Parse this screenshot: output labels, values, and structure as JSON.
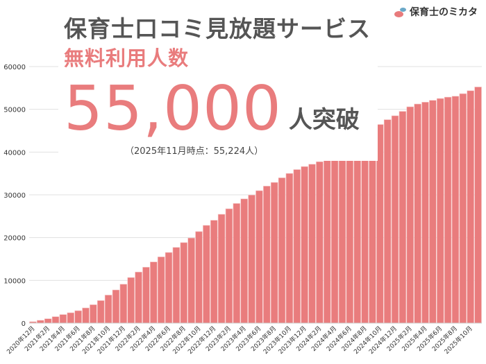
{
  "logo": {
    "text": "保育士のミカタ"
  },
  "header": {
    "title": "保育士口コミ見放題サービス",
    "subtitle": "無料利用人数",
    "big_number": "55,000",
    "suffix": "人突破",
    "note": "（2025年11月時点：55,224人）"
  },
  "colors": {
    "bar": "#e97c7d",
    "bar_edge": "#f6c4c4",
    "grid": "#e0e0e0",
    "text": "#555555"
  },
  "chart_data": {
    "type": "bar",
    "title": "保育士口コミ見放題サービス 無料利用人数",
    "xlabel": "",
    "ylabel": "",
    "ylim": [
      0,
      60000
    ],
    "yticks": [
      0,
      10000,
      20000,
      30000,
      40000,
      50000,
      60000
    ],
    "grid": true,
    "categories": [
      "2020年12月",
      "2021年1月",
      "2021年2月",
      "2021年3月",
      "2021年4月",
      "2021年5月",
      "2021年6月",
      "2021年7月",
      "2021年8月",
      "2021年9月",
      "2021年10月",
      "2021年11月",
      "2021年12月",
      "2022年1月",
      "2022年2月",
      "2022年3月",
      "2022年4月",
      "2022年5月",
      "2022年6月",
      "2022年7月",
      "2022年8月",
      "2022年9月",
      "2022年10月",
      "2022年11月",
      "2022年12月",
      "2023年1月",
      "2023年2月",
      "2023年3月",
      "2023年4月",
      "2023年5月",
      "2023年6月",
      "2023年7月",
      "2023年8月",
      "2023年9月",
      "2023年10月",
      "2023年11月",
      "2023年12月",
      "2024年1月",
      "2024年2月",
      "2024年3月",
      "2024年4月",
      "2024年5月",
      "2024年6月",
      "2024年7月",
      "2024年8月",
      "2024年9月",
      "2024年10月",
      "2024年11月",
      "2024年12月",
      "2025年1月",
      "2025年2月",
      "2025年3月",
      "2025年4月",
      "2025年5月",
      "2025年6月",
      "2025年7月",
      "2025年8月",
      "2025年9月",
      "2025年10月",
      "2025年11月"
    ],
    "values": [
      320,
      650,
      1020,
      1500,
      2000,
      2420,
      2900,
      3550,
      4300,
      5270,
      6560,
      7750,
      9090,
      10650,
      11940,
      13070,
      14310,
      15490,
      16520,
      17700,
      18830,
      19900,
      21410,
      22860,
      24050,
      25450,
      26740,
      27980,
      29050,
      29950,
      30970,
      32040,
      32900,
      33980,
      35000,
      35910,
      36610,
      37150,
      37740,
      38550,
      39410,
      40430,
      41450,
      42740,
      43980,
      45220,
      46450,
      47580,
      48490,
      49520,
      50590,
      51240,
      51670,
      52100,
      52530,
      52850,
      53060,
      53660,
      54350,
      55224
    ],
    "label_every": 2
  }
}
